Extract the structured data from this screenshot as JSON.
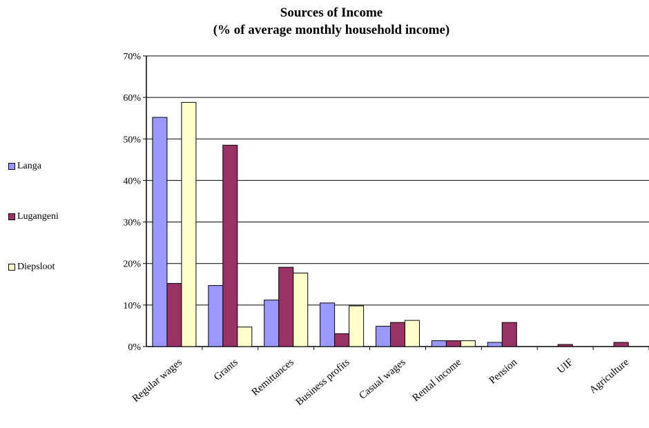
{
  "chart_data": {
    "type": "bar",
    "title": "Sources of Income",
    "subtitle": "(% of average monthly household income)",
    "xlabel": "",
    "ylabel": "",
    "ylim": [
      0,
      70
    ],
    "yticks": [
      "0%",
      "10%",
      "20%",
      "30%",
      "40%",
      "50%",
      "60%",
      "70%"
    ],
    "grid": true,
    "legend_position": "left",
    "categories": [
      "Regular wages",
      "Grants",
      "Remittances",
      "Business profits",
      "Casual wages",
      "Rental income",
      "Pension",
      "UIF",
      "Agriculture"
    ],
    "series": [
      {
        "name": "Langa",
        "color": "#9999ff",
        "values": [
          55.2,
          14.7,
          11.2,
          10.5,
          4.9,
          1.4,
          1.0,
          0.0,
          0.0
        ]
      },
      {
        "name": "Lugangeni",
        "color": "#993366",
        "values": [
          15.2,
          48.5,
          19.1,
          3.1,
          5.8,
          1.4,
          5.8,
          0.5,
          1.0
        ]
      },
      {
        "name": "Diepsloot",
        "color": "#ffffcc",
        "values": [
          58.8,
          4.7,
          17.7,
          9.8,
          6.3,
          1.4,
          0.0,
          0.0,
          0.0
        ]
      }
    ]
  }
}
